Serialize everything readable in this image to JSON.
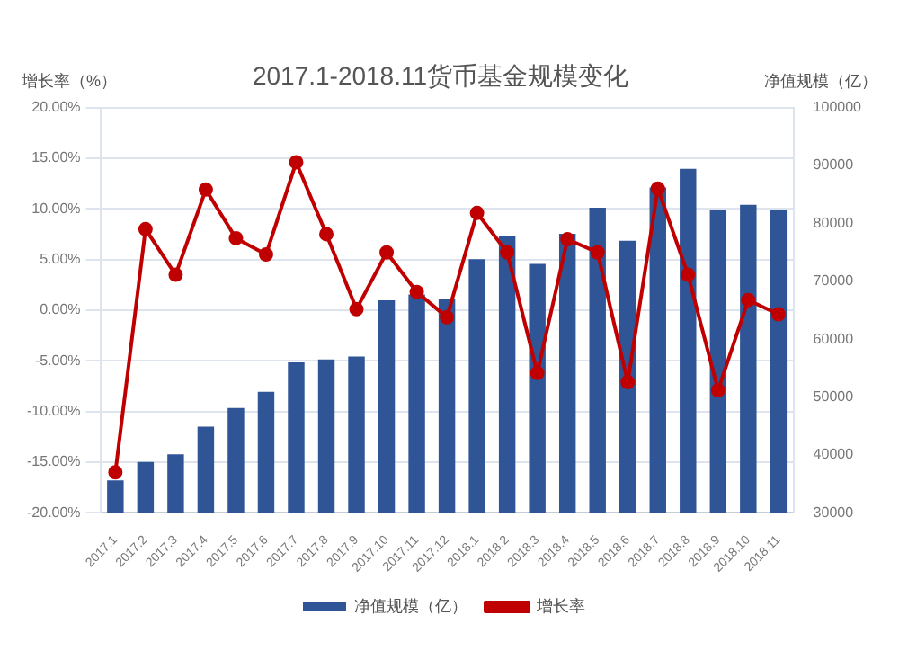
{
  "chart_data": {
    "type": "bar",
    "title": "2017.1-2018.11货币基金规模变化",
    "ylabel": "增长率（%）",
    "y2label": "净值规模（亿）",
    "categories": [
      "2017.1",
      "2017.2",
      "2017.3",
      "2017.4",
      "2017.5",
      "2017.6",
      "2017.7",
      "2017.8",
      "2017.9",
      "2017.10",
      "2017.11",
      "2017.12",
      "2018.1",
      "2018.2",
      "2018.3",
      "2018.4",
      "2018.5",
      "2018.6",
      "2018.7",
      "2018.8",
      "2018.9",
      "2018.10",
      "2018.11"
    ],
    "series": [
      {
        "name": "净值规模（亿）",
        "axis": "y2",
        "color": "#2f5597",
        "values": [
          35600,
          38800,
          40100,
          44900,
          48100,
          50900,
          56000,
          56500,
          57000,
          66700,
          67700,
          67000,
          73800,
          77900,
          73000,
          78200,
          82700,
          77000,
          86200,
          89400,
          82400,
          83200,
          82400
        ]
      },
      {
        "name": "增长率",
        "type": "line",
        "axis": "y",
        "color": "#c00000",
        "marker": "circle",
        "values": [
          -16.0,
          8.0,
          3.5,
          11.9,
          7.1,
          5.5,
          14.6,
          7.5,
          0.1,
          5.7,
          1.8,
          -0.7,
          9.6,
          5.7,
          -6.2,
          7.0,
          5.7,
          -7.1,
          12.0,
          3.5,
          -7.9,
          1.0,
          -0.4
        ]
      }
    ],
    "ylim": [
      -20,
      20
    ],
    "yticks": [
      {
        "value": -20,
        "label": "-20.00%"
      },
      {
        "value": -15,
        "label": "-15.00%"
      },
      {
        "value": -10,
        "label": "-10.00%"
      },
      {
        "value": -5,
        "label": "-5.00%"
      },
      {
        "value": 0,
        "label": "0.00%"
      },
      {
        "value": 5,
        "label": "5.00%"
      },
      {
        "value": 10,
        "label": "10.00%"
      },
      {
        "value": 15,
        "label": "15.00%"
      },
      {
        "value": 20,
        "label": "20.00%"
      }
    ],
    "y2lim": [
      30000,
      100000
    ],
    "y2ticks": [
      30000,
      40000,
      50000,
      60000,
      70000,
      80000,
      90000,
      100000
    ],
    "grid": "y",
    "legend": "bottom"
  }
}
